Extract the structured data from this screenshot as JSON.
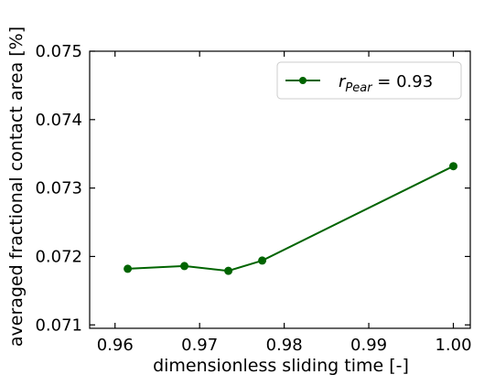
{
  "chart_data": {
    "type": "line",
    "title": "",
    "xlabel": "dimensionless sliding time [-]",
    "ylabel": "averaged fractional contact area [%]",
    "xlim": [
      0.957,
      1.002
    ],
    "ylim": [
      0.07095,
      0.075
    ],
    "xticks": [
      0.96,
      0.97,
      0.98,
      0.99,
      1.0
    ],
    "xtick_labels": [
      "0.96",
      "0.97",
      "0.98",
      "0.99",
      "1.00"
    ],
    "yticks": [
      0.071,
      0.072,
      0.073,
      0.074,
      0.075
    ],
    "ytick_labels": [
      "0.071",
      "0.072",
      "0.073",
      "0.074",
      "0.075"
    ],
    "grid": false,
    "legend_position": "top-right",
    "series": [
      {
        "label_symbol": "r",
        "label_subscript": "Pear",
        "label_value": " = 0.93",
        "color": "#006400",
        "marker": "circle",
        "x": [
          0.9615,
          0.9682,
          0.9734,
          0.9774,
          1.0
        ],
        "y": [
          0.07182,
          0.07186,
          0.07179,
          0.07194,
          0.07332
        ]
      }
    ]
  }
}
